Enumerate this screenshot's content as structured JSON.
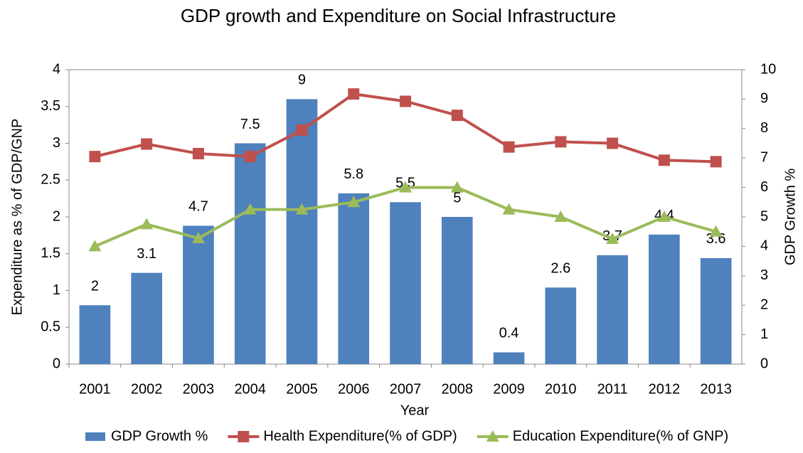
{
  "chart_data": {
    "type": "combo",
    "title": "GDP growth and Expenditure on Social Infrastructure",
    "x_label": "Year",
    "y_label": "Expenditure as % of GDP/GNP",
    "y2_label": "GDP Growth %",
    "categories": [
      "2001",
      "2002",
      "2003",
      "2004",
      "2005",
      "2006",
      "2007",
      "2008",
      "2009",
      "2010",
      "2011",
      "2012",
      "2013"
    ],
    "ylim": [
      0,
      4
    ],
    "yticks": [
      0,
      0.5,
      1,
      1.5,
      2,
      2.5,
      3,
      3.5,
      4
    ],
    "y2lim": [
      0,
      10
    ],
    "y2ticks": [
      0,
      1,
      2,
      3,
      4,
      5,
      6,
      7,
      8,
      9,
      10
    ],
    "grid": false,
    "legend": "bottom",
    "series": [
      {
        "name": "GDP Growth %",
        "type": "bar",
        "axis": "y2",
        "color": "#4f81bd",
        "data_labels": true,
        "values": [
          2,
          3.1,
          4.7,
          7.5,
          9,
          5.8,
          5.5,
          5,
          0.4,
          2.6,
          3.7,
          4.4,
          3.6
        ]
      },
      {
        "name": "Health Expenditure(% of GDP)",
        "type": "line",
        "marker": "square",
        "color": "#c0504d",
        "values": [
          2.82,
          2.99,
          2.86,
          2.82,
          3.18,
          3.67,
          3.57,
          3.38,
          2.95,
          3.02,
          3.0,
          2.77,
          2.75
        ]
      },
      {
        "name": "Education Expenditure(% of GNP)",
        "type": "line",
        "marker": "triangle",
        "color": "#9bbb59",
        "values": [
          1.6,
          1.9,
          1.71,
          2.1,
          2.1,
          2.2,
          2.4,
          2.4,
          2.1,
          2.0,
          1.7,
          2.0,
          1.8
        ]
      }
    ]
  }
}
